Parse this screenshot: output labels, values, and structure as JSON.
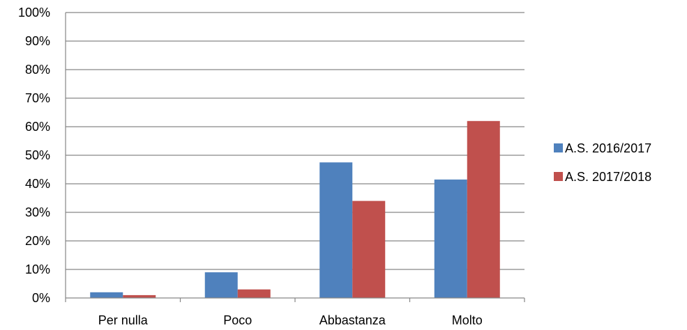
{
  "chart_data": {
    "type": "bar",
    "categories": [
      "Per nulla",
      "Poco",
      "Abbastanza",
      "Molto"
    ],
    "series": [
      {
        "name": "A.S. 2016/2017",
        "color": "#4F81BD",
        "values": [
          2,
          9,
          47.5,
          41.5
        ]
      },
      {
        "name": "A.S. 2017/2018",
        "color": "#C0504D",
        "values": [
          1,
          3,
          34,
          62
        ]
      }
    ],
    "ylim": [
      0,
      100
    ],
    "yticks": [
      0,
      10,
      20,
      30,
      40,
      50,
      60,
      70,
      80,
      90,
      100
    ],
    "ytick_suffix": "%",
    "grid": true,
    "legend_position": "right",
    "gridline_color": "#868686"
  }
}
